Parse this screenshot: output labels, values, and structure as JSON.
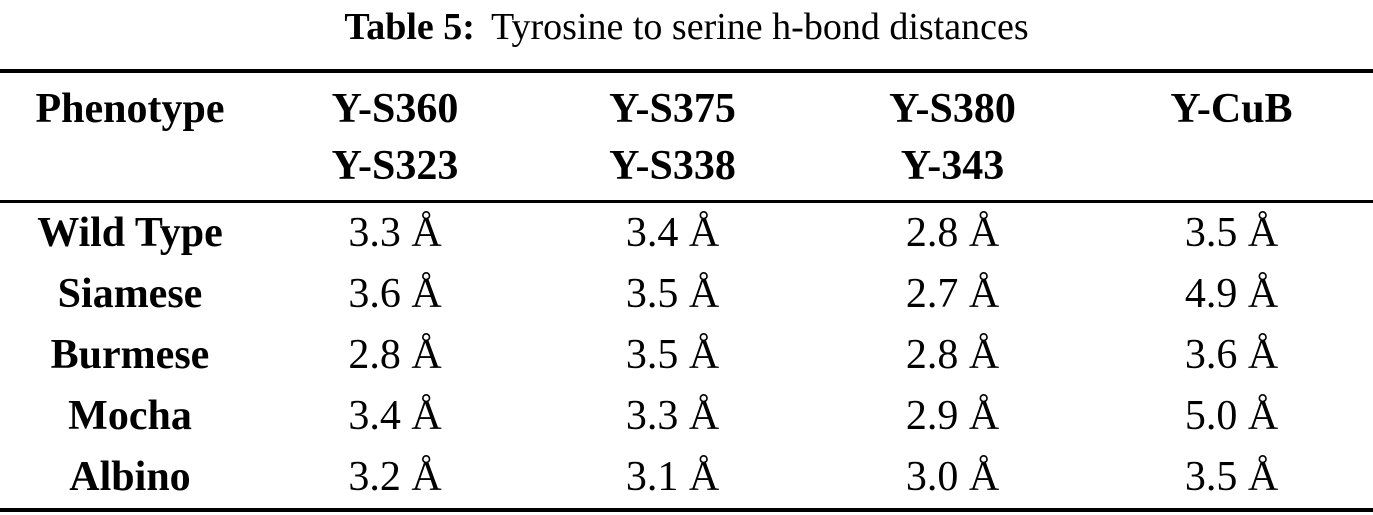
{
  "caption": {
    "label": "Table 5:",
    "text": "Tyrosine to serine h-bond distances"
  },
  "table": {
    "headers": [
      {
        "line1": "Phenotype",
        "line2": ""
      },
      {
        "line1": "Y-S360",
        "line2": "Y-S323"
      },
      {
        "line1": "Y-S375",
        "line2": "Y-S338"
      },
      {
        "line1": "Y-S380",
        "line2": "Y-343"
      },
      {
        "line1": "Y-CuB",
        "line2": ""
      }
    ],
    "rows": [
      {
        "label": "Wild Type",
        "values": [
          "3.3 Å",
          "3.4 Å",
          "2.8 Å",
          "3.5 Å"
        ]
      },
      {
        "label": "Siamese",
        "values": [
          "3.6 Å",
          "3.5 Å",
          "2.7 Å",
          "4.9 Å"
        ]
      },
      {
        "label": "Burmese",
        "values": [
          "2.8 Å",
          "3.5 Å",
          "2.8 Å",
          "3.6 Å"
        ]
      },
      {
        "label": "Mocha",
        "values": [
          "3.4 Å",
          "3.3 Å",
          "2.9 Å",
          "5.0 Å"
        ]
      },
      {
        "label": "Albino",
        "values": [
          "3.2 Å",
          "3.1 Å",
          "3.0 Å",
          "3.5 Å"
        ]
      }
    ]
  },
  "colors": {
    "text": "#000000",
    "background": "#ffffff",
    "rule": "#000000"
  },
  "chart_data": {
    "type": "table",
    "title": "Table 5: Tyrosine to serine h-bond distances",
    "columns": [
      "Phenotype",
      "Y-S360 / Y-S323",
      "Y-S375 / Y-S338",
      "Y-S380 / Y-343",
      "Y-CuB"
    ],
    "rows": [
      [
        "Wild Type",
        "3.3 Å",
        "3.4 Å",
        "2.8 Å",
        "3.5 Å"
      ],
      [
        "Siamese",
        "3.6 Å",
        "3.5 Å",
        "2.7 Å",
        "4.9 Å"
      ],
      [
        "Burmese",
        "2.8 Å",
        "3.5 Å",
        "2.8 Å",
        "3.6 Å"
      ],
      [
        "Mocha",
        "3.4 Å",
        "3.3 Å",
        "2.9 Å",
        "5.0 Å"
      ],
      [
        "Albino",
        "3.2 Å",
        "3.1 Å",
        "3.0 Å",
        "3.5 Å"
      ]
    ],
    "units": "Å"
  }
}
